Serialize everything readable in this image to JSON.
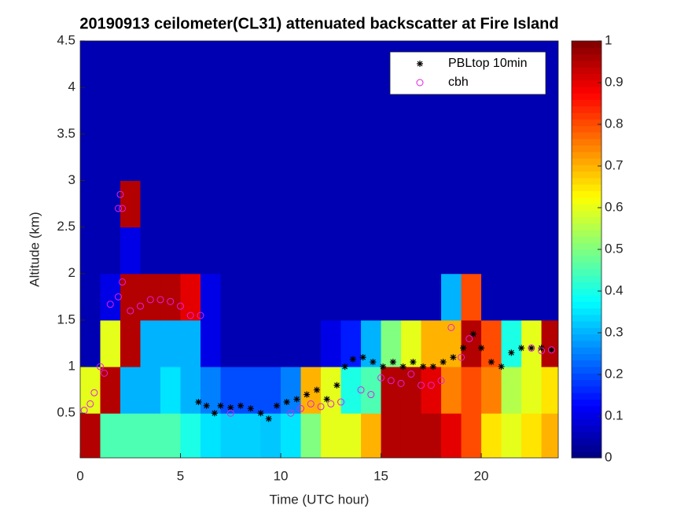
{
  "chart_data": {
    "type": "heatmap",
    "title": "20190913 ceilometer(CL31) attenuated backscatter at Fire Island",
    "x_label": "Time (UTC hour)",
    "y_label": "Altitude (km)",
    "xlim": [
      0,
      23.84
    ],
    "ylim": [
      0.02,
      4.5
    ],
    "xticks": [
      0,
      5,
      10,
      15,
      20
    ],
    "yticks": [
      0.5,
      1,
      1.5,
      2,
      2.5,
      3,
      3.5,
      4,
      4.5
    ],
    "x_edges": [
      0,
      1,
      2,
      3,
      4,
      5,
      6,
      7,
      8,
      9,
      10,
      11,
      12,
      13,
      14,
      15,
      16,
      17,
      18,
      19,
      20,
      21,
      22,
      23,
      24
    ],
    "y_edges": [
      0,
      0.5,
      1,
      1.5,
      2,
      2.5,
      3,
      3.5,
      4,
      4.5
    ],
    "z": [
      [
        0.95,
        0.45,
        0.45,
        0.45,
        0.45,
        0.4,
        0.35,
        0.33,
        0.33,
        0.32,
        0.35,
        0.5,
        0.6,
        0.6,
        0.7,
        0.95,
        0.95,
        0.95,
        0.9,
        0.8,
        0.65,
        0.6,
        0.65,
        0.7
      ],
      [
        0.6,
        0.95,
        0.3,
        0.3,
        0.35,
        0.3,
        0.25,
        0.2,
        0.2,
        0.2,
        0.25,
        0.7,
        0.6,
        0.4,
        0.45,
        0.95,
        0.95,
        0.9,
        0.75,
        0.8,
        0.75,
        0.55,
        0.6,
        0.65
      ],
      [
        0.05,
        0.6,
        0.95,
        0.3,
        0.3,
        0.3,
        0.1,
        0.05,
        0.05,
        0.05,
        0.05,
        0.05,
        0.1,
        0.15,
        0.3,
        0.5,
        0.6,
        0.7,
        0.7,
        0.95,
        0.8,
        0.4,
        0.6,
        0.95
      ],
      [
        0.05,
        0.1,
        0.95,
        0.95,
        0.95,
        0.9,
        0.1,
        0.05,
        0.05,
        0.05,
        0.05,
        0.05,
        0.05,
        0.05,
        0.05,
        0.05,
        0.05,
        0.05,
        0.3,
        0.8,
        0.05,
        0.05,
        0.05,
        0.05
      ],
      [
        0.05,
        0.05,
        0.1,
        0.05,
        0.05,
        0.05,
        0.05,
        0.05,
        0.05,
        0.05,
        0.05,
        0.05,
        0.05,
        0.05,
        0.05,
        0.05,
        0.05,
        0.05,
        0.05,
        0.05,
        0.05,
        0.05,
        0.05,
        0.05
      ],
      [
        0.05,
        0.05,
        0.95,
        0.05,
        0.05,
        0.05,
        0.05,
        0.05,
        0.05,
        0.05,
        0.05,
        0.05,
        0.05,
        0.05,
        0.05,
        0.05,
        0.05,
        0.05,
        0.05,
        0.05,
        0.05,
        0.05,
        0.05,
        0.05
      ],
      [
        0.05,
        0.05,
        0.05,
        0.05,
        0.05,
        0.05,
        0.05,
        0.05,
        0.05,
        0.05,
        0.05,
        0.05,
        0.05,
        0.05,
        0.05,
        0.05,
        0.05,
        0.05,
        0.05,
        0.05,
        0.05,
        0.05,
        0.05,
        0.05
      ],
      [
        0.05,
        0.05,
        0.05,
        0.05,
        0.05,
        0.05,
        0.05,
        0.05,
        0.05,
        0.05,
        0.05,
        0.05,
        0.05,
        0.05,
        0.05,
        0.05,
        0.05,
        0.05,
        0.05,
        0.05,
        0.05,
        0.05,
        0.05,
        0.05
      ],
      [
        0.05,
        0.05,
        0.05,
        0.05,
        0.05,
        0.05,
        0.05,
        0.05,
        0.05,
        0.05,
        0.05,
        0.05,
        0.05,
        0.05,
        0.05,
        0.05,
        0.05,
        0.05,
        0.05,
        0.05,
        0.05,
        0.05,
        0.05,
        0.05
      ]
    ],
    "clim": [
      0,
      1
    ],
    "cticks": [
      0,
      0.1,
      0.2,
      0.3,
      0.4,
      0.5,
      0.6,
      0.7,
      0.8,
      0.9,
      1
    ],
    "legend": "upper right",
    "series": [
      {
        "name": "PBLtop 10min",
        "marker": "star",
        "color": "#000000",
        "x": [
          5.9,
          6.3,
          6.7,
          7,
          7.5,
          8,
          8.5,
          9,
          9.4,
          9.8,
          10.3,
          10.8,
          11.3,
          11.8,
          12.3,
          12.8,
          13.2,
          13.6,
          14.1,
          14.6,
          15.1,
          15.6,
          16.1,
          16.6,
          17.1,
          17.6,
          18.1,
          18.6,
          19.1,
          19.6,
          20,
          20.5,
          21,
          21.5,
          22,
          22.5,
          23,
          23.5
        ],
        "values": [
          0.62,
          0.58,
          0.5,
          0.58,
          0.56,
          0.58,
          0.55,
          0.5,
          0.44,
          0.58,
          0.62,
          0.65,
          0.7,
          0.75,
          0.65,
          0.8,
          1.0,
          1.08,
          1.1,
          1.05,
          1.0,
          1.05,
          1.0,
          1.05,
          1.0,
          1.0,
          1.05,
          1.1,
          1.2,
          1.35,
          1.2,
          1.05,
          1.0,
          1.15,
          1.2,
          1.2,
          1.2,
          1.18
        ]
      },
      {
        "name": "cbh",
        "marker": "circle",
        "color": "#e020e0",
        "x": [
          0.2,
          0.5,
          0.7,
          1,
          1.2,
          1.5,
          1.9,
          2.1,
          2.5,
          3,
          3.5,
          4,
          4.5,
          5,
          5.5,
          6,
          1.9,
          2.0,
          2.1,
          7.5,
          10.5,
          11,
          11.5,
          12,
          12.5,
          13,
          14,
          14.5,
          15,
          15.5,
          16,
          16.5,
          17,
          17.5,
          18,
          18.5,
          19,
          19.4,
          22.5,
          23,
          23.5
        ],
        "values": [
          0.53,
          0.6,
          0.72,
          1.0,
          0.93,
          1.67,
          1.75,
          1.91,
          1.6,
          1.65,
          1.72,
          1.72,
          1.7,
          1.65,
          1.55,
          1.55,
          2.7,
          2.85,
          2.7,
          0.5,
          0.5,
          0.55,
          0.6,
          0.57,
          0.6,
          0.62,
          0.75,
          0.7,
          0.88,
          0.85,
          0.82,
          0.92,
          0.8,
          0.8,
          0.85,
          1.42,
          1.1,
          1.3,
          1.2,
          1.17,
          1.18
        ]
      }
    ]
  }
}
